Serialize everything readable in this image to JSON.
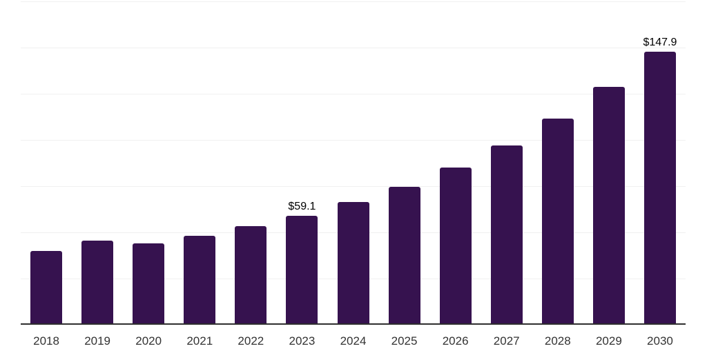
{
  "chart_data": {
    "type": "bar",
    "title": "",
    "xlabel": "",
    "ylabel": "",
    "categories": [
      "2018",
      "2019",
      "2020",
      "2021",
      "2022",
      "2023",
      "2024",
      "2025",
      "2026",
      "2027",
      "2028",
      "2029",
      "2030"
    ],
    "values": [
      39.8,
      45.7,
      44.2,
      48.3,
      53.5,
      59.1,
      66.5,
      74.7,
      85.1,
      97.0,
      111.5,
      128.6,
      147.9
    ],
    "data_labels": [
      "",
      "",
      "",
      "",
      "",
      "$59.1",
      "",
      "",
      "",
      "",
      "",
      "",
      "$147.9"
    ],
    "ylim": [
      0,
      175
    ],
    "gridline_values": [
      25,
      50,
      75,
      100,
      125,
      150,
      175
    ],
    "grid": "horizontal",
    "legend": "none",
    "colors": {
      "bar": "#36124F",
      "gridline": "#f0f0f0",
      "axis_line": "#2e2e2e",
      "tick_label": "#333333",
      "value_label": "#000000"
    }
  }
}
